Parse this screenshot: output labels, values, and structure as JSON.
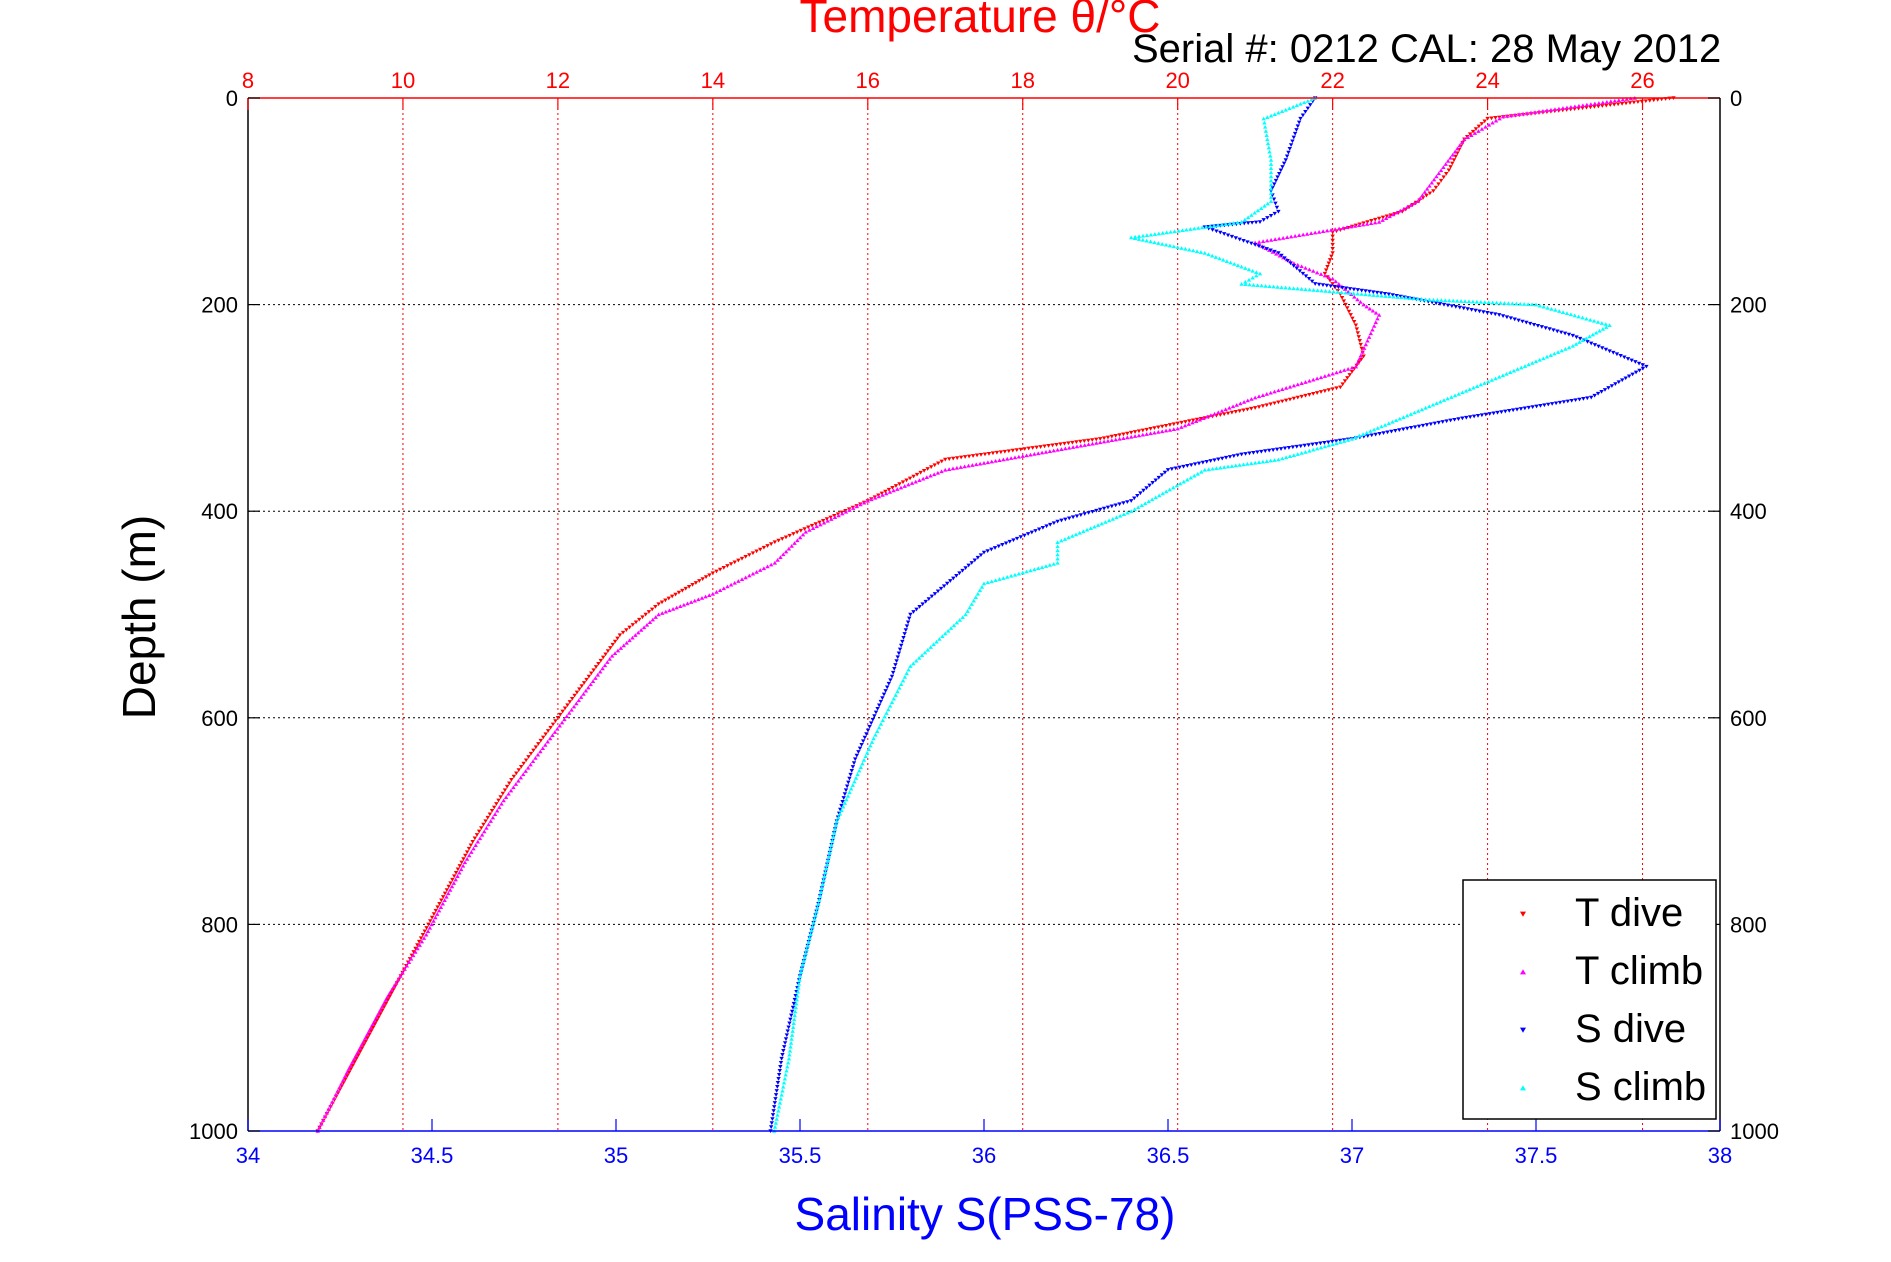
{
  "chart_data": {
    "type": "scatter",
    "title": "Temperature θ/°C",
    "subtitle": "Serial #: 0212  CAL: 28 May 2012",
    "xlabel": "Salinity S(PSS-78)",
    "ylabel": "Depth (m)",
    "colors": {
      "temperature_axis": "#ff0000",
      "salinity_axis": "#0000ff"
    },
    "top_axis": {
      "label": "Temperature θ/°C",
      "range": [
        8,
        27
      ],
      "ticks": [
        8,
        10,
        12,
        14,
        16,
        18,
        20,
        22,
        24,
        26
      ]
    },
    "bottom_axis": {
      "label": "Salinity S(PSS-78)",
      "range": [
        34,
        38
      ],
      "ticks": [
        34,
        34.5,
        35,
        35.5,
        36,
        36.5,
        37,
        37.5,
        38
      ]
    },
    "y_axis": {
      "label": "Depth (m)",
      "range": [
        0,
        1000
      ],
      "reversed": true,
      "ticks": [
        0,
        200,
        400,
        600,
        800,
        1000
      ]
    },
    "grid": true,
    "legend_position": "bottom-right",
    "series": [
      {
        "name": "T dive",
        "axis": "top",
        "color": "#ff0000",
        "marker": "triangle-down",
        "points": [
          [
            26.4,
            0
          ],
          [
            24.0,
            20
          ],
          [
            23.7,
            40
          ],
          [
            23.5,
            70
          ],
          [
            23.3,
            90
          ],
          [
            22.9,
            110
          ],
          [
            22.0,
            130
          ],
          [
            22.0,
            150
          ],
          [
            21.9,
            170
          ],
          [
            22.1,
            190
          ],
          [
            22.3,
            220
          ],
          [
            22.4,
            250
          ],
          [
            22.1,
            280
          ],
          [
            21.0,
            300
          ],
          [
            19.0,
            330
          ],
          [
            17.0,
            350
          ],
          [
            16.0,
            390
          ],
          [
            14.8,
            430
          ],
          [
            14.0,
            460
          ],
          [
            13.3,
            490
          ],
          [
            12.8,
            520
          ],
          [
            12.4,
            560
          ],
          [
            12.0,
            600
          ],
          [
            11.4,
            660
          ],
          [
            10.9,
            720
          ],
          [
            10.4,
            790
          ],
          [
            9.9,
            860
          ],
          [
            9.4,
            930
          ],
          [
            8.9,
            1000
          ]
        ]
      },
      {
        "name": "T climb",
        "axis": "top",
        "color": "#ff00ff",
        "marker": "triangle-up",
        "points": [
          [
            25.9,
            0
          ],
          [
            24.2,
            18
          ],
          [
            23.7,
            40
          ],
          [
            23.4,
            70
          ],
          [
            23.1,
            100
          ],
          [
            22.6,
            120
          ],
          [
            21.0,
            140
          ],
          [
            21.5,
            160
          ],
          [
            22.0,
            175
          ],
          [
            22.4,
            200
          ],
          [
            22.6,
            210
          ],
          [
            22.3,
            260
          ],
          [
            21.0,
            290
          ],
          [
            20.0,
            320
          ],
          [
            18.5,
            340
          ],
          [
            17.0,
            360
          ],
          [
            16.0,
            390
          ],
          [
            15.2,
            420
          ],
          [
            14.8,
            450
          ],
          [
            14.0,
            480
          ],
          [
            13.3,
            500
          ],
          [
            12.7,
            540
          ],
          [
            12.3,
            580
          ],
          [
            11.9,
            620
          ],
          [
            11.3,
            680
          ],
          [
            10.8,
            740
          ],
          [
            10.3,
            810
          ],
          [
            9.8,
            870
          ],
          [
            9.3,
            940
          ],
          [
            8.9,
            1000
          ]
        ]
      },
      {
        "name": "S dive",
        "axis": "bottom",
        "color": "#0000ff",
        "marker": "triangle-down",
        "points": [
          [
            36.9,
            0
          ],
          [
            36.86,
            20
          ],
          [
            36.82,
            60
          ],
          [
            36.78,
            90
          ],
          [
            36.8,
            110
          ],
          [
            36.75,
            120
          ],
          [
            36.6,
            125
          ],
          [
            36.8,
            150
          ],
          [
            36.9,
            180
          ],
          [
            37.1,
            190
          ],
          [
            37.4,
            210
          ],
          [
            37.6,
            230
          ],
          [
            37.8,
            260
          ],
          [
            37.65,
            290
          ],
          [
            37.3,
            310
          ],
          [
            37.0,
            330
          ],
          [
            36.7,
            345
          ],
          [
            36.5,
            360
          ],
          [
            36.4,
            390
          ],
          [
            36.2,
            410
          ],
          [
            36.0,
            440
          ],
          [
            35.9,
            470
          ],
          [
            35.8,
            500
          ],
          [
            35.75,
            560
          ],
          [
            35.65,
            640
          ],
          [
            35.6,
            700
          ],
          [
            35.55,
            780
          ],
          [
            35.5,
            850
          ],
          [
            35.45,
            930
          ],
          [
            35.42,
            1000
          ]
        ]
      },
      {
        "name": "S climb",
        "axis": "bottom",
        "color": "#00ffff",
        "marker": "triangle-up",
        "points": [
          [
            36.9,
            0
          ],
          [
            36.76,
            20
          ],
          [
            36.78,
            60
          ],
          [
            36.78,
            100
          ],
          [
            36.7,
            120
          ],
          [
            36.4,
            135
          ],
          [
            36.6,
            150
          ],
          [
            36.75,
            170
          ],
          [
            36.7,
            180
          ],
          [
            37.2,
            195
          ],
          [
            37.5,
            200
          ],
          [
            37.7,
            220
          ],
          [
            37.6,
            240
          ],
          [
            37.4,
            270
          ],
          [
            37.2,
            300
          ],
          [
            37.0,
            330
          ],
          [
            36.8,
            350
          ],
          [
            36.6,
            360
          ],
          [
            36.4,
            400
          ],
          [
            36.2,
            430
          ],
          [
            36.2,
            450
          ],
          [
            36.0,
            470
          ],
          [
            35.95,
            500
          ],
          [
            35.8,
            550
          ],
          [
            35.7,
            620
          ],
          [
            35.6,
            700
          ],
          [
            35.55,
            780
          ],
          [
            35.5,
            850
          ],
          [
            35.47,
            930
          ],
          [
            35.43,
            1000
          ]
        ]
      }
    ]
  },
  "legend": {
    "items": [
      {
        "label": "T dive",
        "color": "#ff0000",
        "marker": "triangle-down"
      },
      {
        "label": "T climb",
        "color": "#ff00ff",
        "marker": "triangle-up"
      },
      {
        "label": "S dive",
        "color": "#0000ff",
        "marker": "triangle-down"
      },
      {
        "label": "S climb",
        "color": "#00ffff",
        "marker": "triangle-up"
      }
    ]
  }
}
